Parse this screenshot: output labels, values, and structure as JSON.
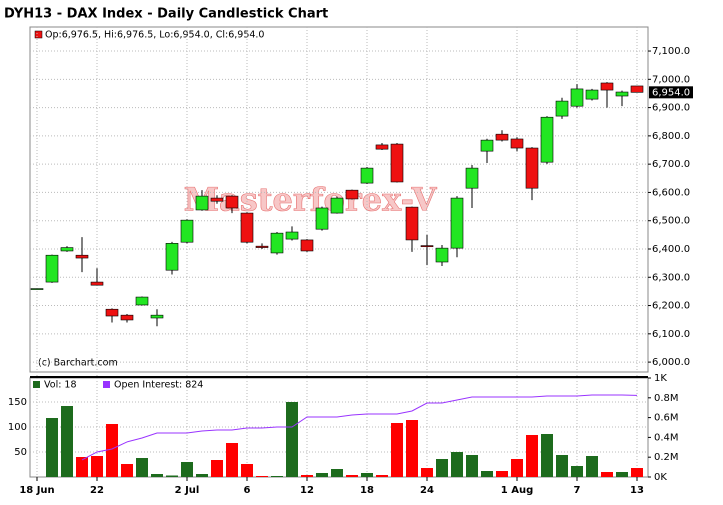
{
  "chart_data": [
    {
      "type": "candlestick",
      "title": "DYH13 - DAX Index - Daily Candlestick Chart",
      "legend_text": "Op:6,976.5, Hi:6,976.5, Lo:6,954.0, Cl:6,954.0",
      "watermark": "Masterforex-V",
      "copyright": "(c) Barchart.com",
      "categories": [
        "18 Jun",
        null,
        null,
        null,
        "22",
        null,
        null,
        null,
        null,
        null,
        "2 Jul",
        null,
        null,
        null,
        "6",
        null,
        null,
        null,
        "12",
        null,
        null,
        null,
        "18",
        null,
        null,
        null,
        "24",
        null,
        null,
        null,
        null,
        null,
        "1 Aug",
        null,
        null,
        null,
        "7",
        null,
        null,
        null,
        "13"
      ],
      "open": [
        6260,
        6283,
        6393,
        6378,
        6283,
        6187,
        6166,
        6202,
        6156,
        6325,
        6424,
        6538,
        6580,
        6587,
        6527,
        6410,
        6386,
        6435,
        6432,
        6470,
        6527,
        6608,
        6633,
        6768,
        6771,
        6548,
        6412,
        6354,
        6403,
        6615,
        6746,
        6806,
        6789,
        6757,
        6707,
        6870,
        6905,
        6930,
        6987,
        6941,
        6976.5
      ],
      "high": [
        6260,
        6380,
        6410,
        6442,
        6332,
        6190,
        6170,
        6232,
        6187,
        6425,
        6505,
        6608,
        6590,
        6590,
        6530,
        6420,
        6460,
        6480,
        6435,
        6550,
        6585,
        6610,
        6690,
        6775,
        6775,
        6550,
        6450,
        6414,
        6587,
        6697,
        6790,
        6820,
        6795,
        6760,
        6870,
        6935,
        6983,
        6966,
        6990,
        6960,
        6976.5
      ],
      "low": [
        6260,
        6280,
        6390,
        6318,
        6272,
        6140,
        6140,
        6200,
        6127,
        6310,
        6420,
        6535,
        6560,
        6527,
        6420,
        6400,
        6380,
        6430,
        6390,
        6465,
        6525,
        6575,
        6630,
        6750,
        6635,
        6390,
        6343,
        6340,
        6371,
        6545,
        6704,
        6780,
        6745,
        6573,
        6700,
        6860,
        6900,
        6925,
        6900,
        6905,
        6954
      ],
      "close": [
        6260,
        6378,
        6405,
        6368,
        6272,
        6163,
        6149,
        6230,
        6166,
        6420,
        6502,
        6587,
        6569,
        6545,
        6424,
        6405,
        6456,
        6460,
        6393,
        6545,
        6580,
        6577,
        6686,
        6753,
        6637,
        6432,
        6408,
        6403,
        6580,
        6686,
        6785,
        6785,
        6757,
        6615,
        6866,
        6923,
        6966,
        6962,
        6962,
        6955,
        6954
      ],
      "last_value_label": "6,954.0",
      "up_color": "#22e622",
      "down_color": "#ee1111",
      "ylim": [
        5965,
        7185
      ],
      "yticks": [
        {
          "value": 6000,
          "label": "6,000.0"
        },
        {
          "value": 6100,
          "label": "6,100.0"
        },
        {
          "value": 6200,
          "label": "6,200.0"
        },
        {
          "value": 6300,
          "label": "6,300.0"
        },
        {
          "value": 6400,
          "label": "6,400.0"
        },
        {
          "value": 6500,
          "label": "6,500.0"
        },
        {
          "value": 6600,
          "label": "6,600.0"
        },
        {
          "value": 6700,
          "label": "6,700.0"
        },
        {
          "value": 6800,
          "label": "6,800.0"
        },
        {
          "value": 6900,
          "label": "6,900.0"
        },
        {
          "value": 7000,
          "label": "7,000.0"
        },
        {
          "value": 7100,
          "label": "7,100.0"
        }
      ],
      "grid": true
    },
    {
      "type": "bar",
      "series": [
        {
          "name": "Vol: 18",
          "color": "#1d6b1d",
          "down_color": "#ff0000",
          "values": [
            0,
            118,
            142,
            40,
            42,
            106,
            26,
            38,
            6,
            3,
            30,
            6,
            34,
            68,
            26,
            2,
            2,
            150,
            4,
            8,
            16,
            4,
            8,
            4,
            108,
            114,
            18,
            36,
            50,
            44,
            12,
            12,
            36,
            84,
            86,
            44,
            22,
            42,
            10,
            10,
            18
          ]
        },
        {
          "name": "Open Interest: 824",
          "color": "#9933ff",
          "axis": "y2",
          "values": [
            null,
            null,
            null,
            172,
            253,
            283,
            354,
            394,
            444,
            444,
            444,
            465,
            475,
            475,
            495,
            495,
            505,
            505,
            606,
            606,
            606,
            626,
            636,
            636,
            636,
            667,
            747,
            747,
            778,
            808,
            808,
            808,
            808,
            808,
            818,
            818,
            818,
            828,
            828,
            828,
            824
          ]
        }
      ],
      "ylim": [
        0,
        198
      ],
      "yticks": [
        50,
        100,
        150
      ],
      "y2lim": [
        0,
        1000
      ],
      "y2ticks": [
        {
          "value": 0,
          "label": "0K"
        },
        {
          "value": 200,
          "label": "0.2M"
        },
        {
          "value": 400,
          "label": "0.4M"
        },
        {
          "value": 600,
          "label": "0.6M"
        },
        {
          "value": 800,
          "label": "0.8M"
        },
        {
          "value": 1000,
          "label": "1K"
        }
      ],
      "grid": true
    }
  ]
}
